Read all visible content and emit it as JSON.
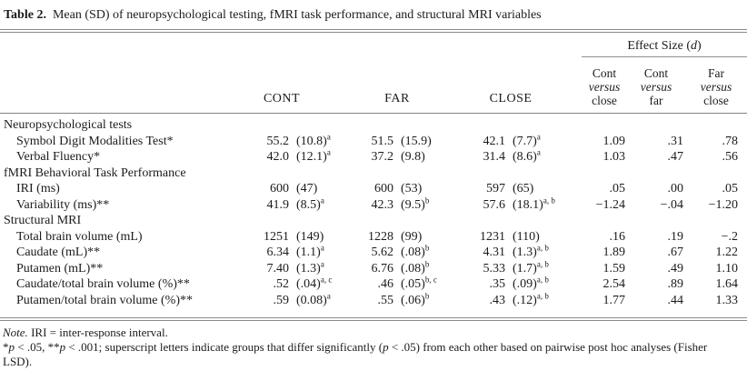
{
  "title": {
    "segments": [
      {
        "t": "Table 2.",
        "b": true
      },
      {
        "t": "Mean (SD) of neuropsychological testing, fMRI task performance, and structural MRI variables"
      }
    ]
  },
  "header": {
    "effect_size": {
      "segments": [
        {
          "t": "Effect Size ("
        },
        {
          "t": "d",
          "i": true
        },
        {
          "t": ")"
        }
      ]
    },
    "groups": {
      "cont": "CONT",
      "far": "FAR",
      "close": "CLOSE"
    },
    "es_cols": [
      {
        "line1": "Cont",
        "line2": "versus",
        "line3": "close"
      },
      {
        "line1": "Cont",
        "line2": "versus",
        "line3": "far"
      },
      {
        "line1": "Far",
        "line2": "versus",
        "line3": "close"
      }
    ]
  },
  "rows": [
    {
      "type": "section",
      "label": "Neuropsychological tests"
    },
    {
      "type": "data",
      "label": "Symbol Digit Modalities Test*",
      "cont": {
        "m": "55.2",
        "sd": "(10.8)",
        "sup": "a"
      },
      "far": {
        "m": "51.5",
        "sd": "(15.9)",
        "sup": ""
      },
      "close": {
        "m": "42.1",
        "sd": "(7.7)",
        "sup": "a"
      },
      "es": [
        "1.09",
        ".31",
        ".78"
      ]
    },
    {
      "type": "data",
      "label": "Verbal Fluency*",
      "cont": {
        "m": "42.0",
        "sd": "(12.1)",
        "sup": "a"
      },
      "far": {
        "m": "37.2",
        "sd": "(9.8)",
        "sup": ""
      },
      "close": {
        "m": "31.4",
        "sd": "(8.6)",
        "sup": "a"
      },
      "es": [
        "1.03",
        ".47",
        ".56"
      ]
    },
    {
      "type": "section",
      "label": "fMRI Behavioral Task Performance"
    },
    {
      "type": "data",
      "label": "IRI (ms)",
      "cont": {
        "m": "600",
        "sd": "(47)",
        "sup": ""
      },
      "far": {
        "m": "600",
        "sd": "(53)",
        "sup": ""
      },
      "close": {
        "m": "597",
        "sd": "(65)",
        "sup": ""
      },
      "es": [
        ".05",
        ".00",
        ".05"
      ]
    },
    {
      "type": "data",
      "label": "Variability (ms)**",
      "cont": {
        "m": "41.9",
        "sd": "(8.5)",
        "sup": "a"
      },
      "far": {
        "m": "42.3",
        "sd": "(9.5)",
        "sup": "b"
      },
      "close": {
        "m": "57.6",
        "sd": "(18.1)",
        "sup": "a, b"
      },
      "es": [
        "−1.24",
        "−.04",
        "−1.20"
      ]
    },
    {
      "type": "section",
      "label": "Structural MRI"
    },
    {
      "type": "data",
      "label": "Total brain volume (mL)",
      "cont": {
        "m": "1251",
        "sd": "(149)",
        "sup": ""
      },
      "far": {
        "m": "1228",
        "sd": "(99)",
        "sup": ""
      },
      "close": {
        "m": "1231",
        "sd": "(110)",
        "sup": ""
      },
      "es": [
        ".16",
        ".19",
        "−.2"
      ]
    },
    {
      "type": "data",
      "label": "Caudate (mL)**",
      "cont": {
        "m": "6.34",
        "sd": "(1.1)",
        "sup": "a"
      },
      "far": {
        "m": "5.62",
        "sd": "(.08)",
        "sup": "b"
      },
      "close": {
        "m": "4.31",
        "sd": "(1.3)",
        "sup": "a, b"
      },
      "es": [
        "1.89",
        ".67",
        "1.22"
      ]
    },
    {
      "type": "data",
      "label": "Putamen (mL)**",
      "cont": {
        "m": "7.40",
        "sd": "(1.3)",
        "sup": "a"
      },
      "far": {
        "m": "6.76",
        "sd": "(.08)",
        "sup": "b"
      },
      "close": {
        "m": "5.33",
        "sd": "(1.7)",
        "sup": "a, b"
      },
      "es": [
        "1.59",
        ".49",
        "1.10"
      ]
    },
    {
      "type": "data",
      "label": "Caudate/total brain volume (%)**",
      "cont": {
        "m": ".52",
        "sd": "(.04)",
        "sup": "a, c"
      },
      "far": {
        "m": ".46",
        "sd": "(.05)",
        "sup": "b, c"
      },
      "close": {
        "m": ".35",
        "sd": "(.09)",
        "sup": "a, b"
      },
      "es": [
        "2.54",
        ".89",
        "1.64"
      ]
    },
    {
      "type": "data",
      "label": "Putamen/total brain volume (%)**",
      "cont": {
        "m": ".59",
        "sd": "(0.08)",
        "sup": "a"
      },
      "far": {
        "m": ".55",
        "sd": "(.06)",
        "sup": "b"
      },
      "close": {
        "m": ".43",
        "sd": "(.12)",
        "sup": "a, b"
      },
      "es": [
        "1.77",
        ".44",
        "1.33"
      ]
    }
  ],
  "notes": {
    "line1_segments": [
      {
        "t": "Note.",
        "i": true
      },
      {
        "t": " IRI = inter-response interval."
      }
    ],
    "line2_segments": [
      {
        "t": "*"
      },
      {
        "t": "p",
        "i": true
      },
      {
        "t": " < .05, **"
      },
      {
        "t": "p",
        "i": true
      },
      {
        "t": " < .001; superscript letters indicate groups that differ significantly ("
      },
      {
        "t": "p",
        "i": true
      },
      {
        "t": " < .05) from each other based on pairwise post hoc analyses (Fisher"
      }
    ],
    "line3": "LSD)."
  }
}
